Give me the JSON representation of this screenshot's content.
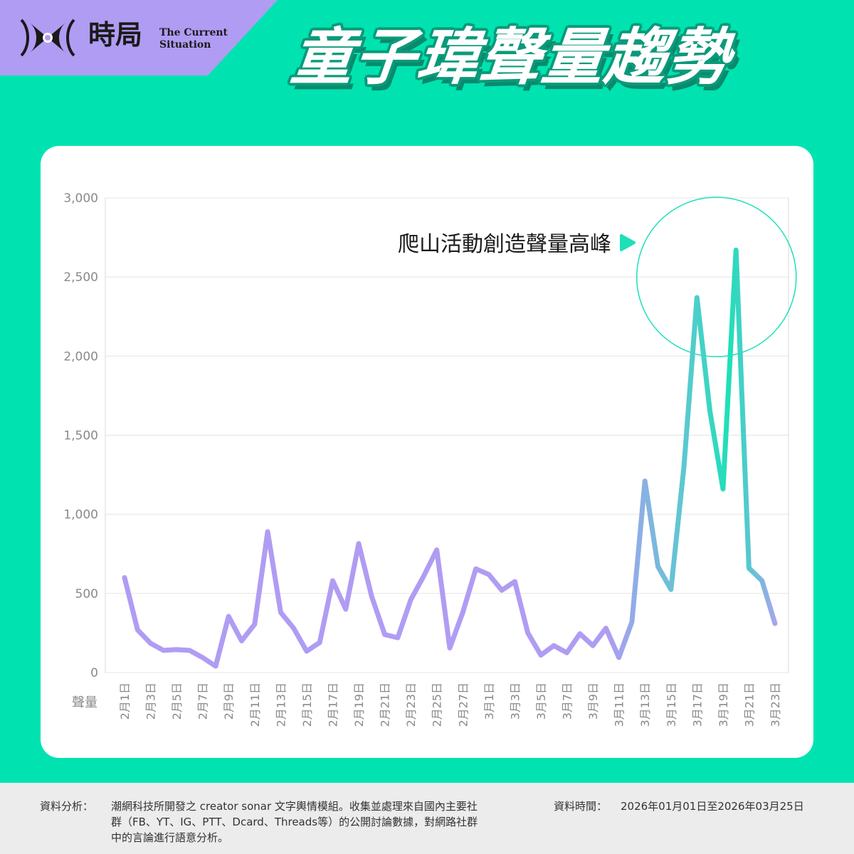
{
  "brand": {
    "name_zh": "時局",
    "name_en": "The Current Situation",
    "icon": "eye-logo-icon",
    "color": "#b09cf3"
  },
  "title": "童子瑋聲量趨勢",
  "footer": {
    "source_label": "資料分析：",
    "source_text": "潮網科技所開發之 creator sonar 文字輿情模組。收集並處理來自國內主要社群（FB、YT、IG、PTT、Dcard、Threads等）的公開討論數據，對網路社群中的言論進行語意分析。",
    "time_label": "資料時間：",
    "time_text": "2026年01月01日至2026年03月25日"
  },
  "chart_data": {
    "type": "line",
    "title": "",
    "xlabel": "",
    "ylabel": "聲量",
    "ylim": [
      0,
      3000
    ],
    "yticks": [
      0,
      500,
      1000,
      1500,
      2000,
      2500,
      3000
    ],
    "ytick_labels": [
      "0",
      "500",
      "1,000",
      "1,500",
      "2,000",
      "2,500",
      "3,000"
    ],
    "grid": true,
    "colors": {
      "start": "#b09cf3",
      "end": "#1ee0b8",
      "highlight": "#1ee0b8"
    },
    "x": [
      "2月1日",
      "2月2日",
      "2月3日",
      "2月4日",
      "2月5日",
      "2月6日",
      "2月7日",
      "2月8日",
      "2月9日",
      "2月10日",
      "2月11日",
      "2月12日",
      "2月13日",
      "2月14日",
      "2月15日",
      "2月16日",
      "2月17日",
      "2月18日",
      "2月19日",
      "2月20日",
      "2月21日",
      "2月22日",
      "2月23日",
      "2月24日",
      "2月25日",
      "2月26日",
      "2月27日",
      "2月28日",
      "3月1日",
      "3月2日",
      "3月3日",
      "3月4日",
      "3月5日",
      "3月6日",
      "3月7日",
      "3月8日",
      "3月9日",
      "3月10日",
      "3月11日",
      "3月12日",
      "3月13日",
      "3月14日",
      "3月15日",
      "3月16日",
      "3月17日",
      "3月18日",
      "3月19日",
      "3月20日",
      "3月21日",
      "3月22日",
      "3月23日"
    ],
    "x_tick_labels": [
      "2月1日",
      "2月3日",
      "2月5日",
      "2月7日",
      "2月9日",
      "2月11日",
      "2月13日",
      "2月15日",
      "2月17日",
      "2月19日",
      "2月21日",
      "2月23日",
      "2月25日",
      "2月27日",
      "3月1日",
      "3月3日",
      "3月5日",
      "3月7日",
      "3月9日",
      "3月11日",
      "3月13日",
      "3月15日",
      "3月17日",
      "3月19日",
      "3月21日",
      "3月23日"
    ],
    "series": [
      {
        "values": [
          600,
          270,
          185,
          140,
          145,
          140,
          95,
          40,
          355,
          200,
          305,
          890,
          380,
          280,
          135,
          190,
          580,
          400,
          815,
          480,
          240,
          220,
          460,
          610,
          775,
          155,
          380,
          655,
          620,
          520,
          575,
          250,
          110,
          170,
          125,
          245,
          170,
          280,
          95,
          320,
          1210,
          670,
          525,
          1300,
          2370,
          1650,
          1160,
          2670,
          660,
          580,
          310
        ]
      }
    ],
    "annotation": {
      "text": "爬山活動創造聲量高峰",
      "arrow_icon": "play-triangle-icon"
    }
  }
}
